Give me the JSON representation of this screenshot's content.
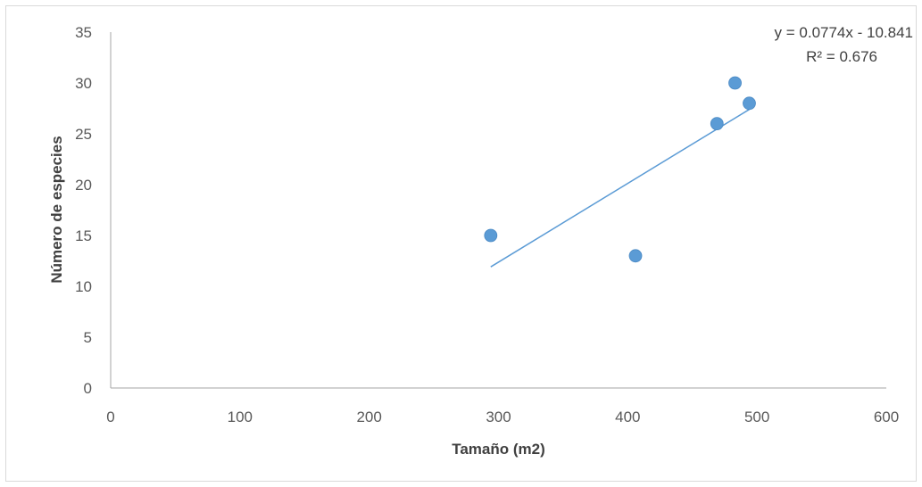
{
  "chart_data": {
    "type": "scatter",
    "xlabel": "Tamaño (m2)",
    "ylabel": "Número de especies",
    "xlim": [
      0,
      600
    ],
    "ylim": [
      0,
      35
    ],
    "x_ticks": [
      "0",
      "100",
      "200",
      "300",
      "400",
      "500",
      "600"
    ],
    "y_ticks": [
      "0",
      "5",
      "10",
      "15",
      "20",
      "25",
      "30",
      "35"
    ],
    "points": [
      {
        "x": 294,
        "y": 15
      },
      {
        "x": 406,
        "y": 13
      },
      {
        "x": 469,
        "y": 26
      },
      {
        "x": 483,
        "y": 30
      },
      {
        "x": 494,
        "y": 28
      }
    ],
    "trendline": {
      "slope": 0.0774,
      "intercept": -10.841,
      "x_range": [
        294,
        494
      ],
      "equation_label": "y = 0.0774x - 10.841",
      "r2_label": "R² = 0.676"
    },
    "grid": false,
    "legend": "none",
    "colors": {
      "marker": "#5b9bd5",
      "trendline": "#5b9bd5",
      "axis": "#a6a6a6"
    }
  }
}
